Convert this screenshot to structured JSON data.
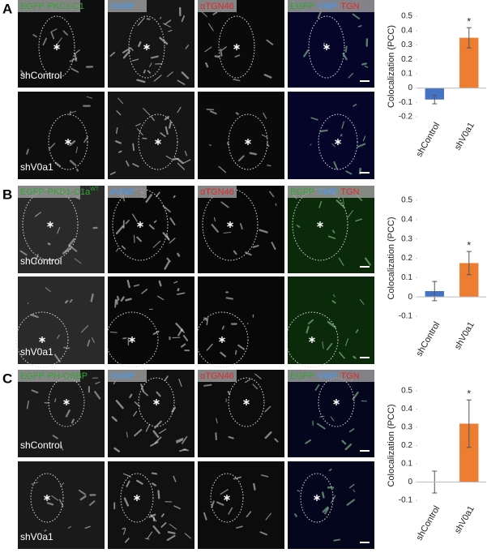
{
  "panels": [
    {
      "letter": "A",
      "headers": [
        {
          "text": "EGFP-PKCε-C1"
        },
        {
          "text": "αVWF"
        },
        {
          "text": "αTGN46"
        }
      ],
      "merge": [
        "EGFP",
        "VWF",
        "TGN"
      ],
      "rows": [
        "shControl",
        "shV0a1"
      ]
    },
    {
      "letter": "B",
      "headers": [
        {
          "text": "EGFP-PKD1-C1a",
          "sup": "WT"
        },
        {
          "text": "αVWF"
        },
        {
          "text": "αTGN46"
        }
      ],
      "merge": [
        "EGFP",
        "VWF",
        "TGN"
      ],
      "rows": [
        "shControl",
        "shV0a1"
      ]
    },
    {
      "letter": "C",
      "headers": [
        {
          "text": "EGFP-PH-OSBP"
        },
        {
          "text": "αVWF"
        },
        {
          "text": "αTGN46"
        }
      ],
      "merge": [
        "EGFP",
        "VWF",
        "TGN"
      ],
      "rows": [
        "shControl",
        "shV0a1"
      ]
    }
  ],
  "chart_data": [
    {
      "type": "bar",
      "ylabel": "Colocalization (PCC)",
      "categories": [
        "shControl",
        "shV0a1"
      ],
      "values": [
        -0.08,
        0.35
      ],
      "errors": [
        0.03,
        0.07
      ],
      "colors": [
        "#4472c4",
        "#ed7d31"
      ],
      "annotations": [
        {
          "text": "*",
          "category": "shV0a1"
        }
      ],
      "ylim": [
        -0.2,
        0.5
      ],
      "yticks": [
        -0.2,
        -0.1,
        0,
        0.1,
        0.2,
        0.3,
        0.4,
        0.5
      ]
    },
    {
      "type": "bar",
      "ylabel": "Colocalization (PCC)",
      "categories": [
        "shControl",
        "shV0a1"
      ],
      "values": [
        0.03,
        0.175
      ],
      "errors": [
        0.05,
        0.06
      ],
      "colors": [
        "#4472c4",
        "#ed7d31"
      ],
      "annotations": [
        {
          "text": "*",
          "category": "shV0a1"
        }
      ],
      "ylim": [
        -0.1,
        0.5
      ],
      "yticks": [
        -0.1,
        0,
        0.1,
        0.2,
        0.3,
        0.4,
        0.5
      ]
    },
    {
      "type": "bar",
      "ylabel": "Colocalization (PCC)",
      "categories": [
        "shControl",
        "shV0a1"
      ],
      "values": [
        0,
        0.32
      ],
      "errors": [
        0.06,
        0.13
      ],
      "colors": [
        "#4472c4",
        "#ed7d31"
      ],
      "annotations": [
        {
          "text": "*",
          "category": "shV0a1"
        }
      ],
      "ylim": [
        -0.1,
        0.5
      ],
      "yticks": [
        -0.1,
        0,
        0.1,
        0.2,
        0.3,
        0.4,
        0.5
      ]
    }
  ]
}
